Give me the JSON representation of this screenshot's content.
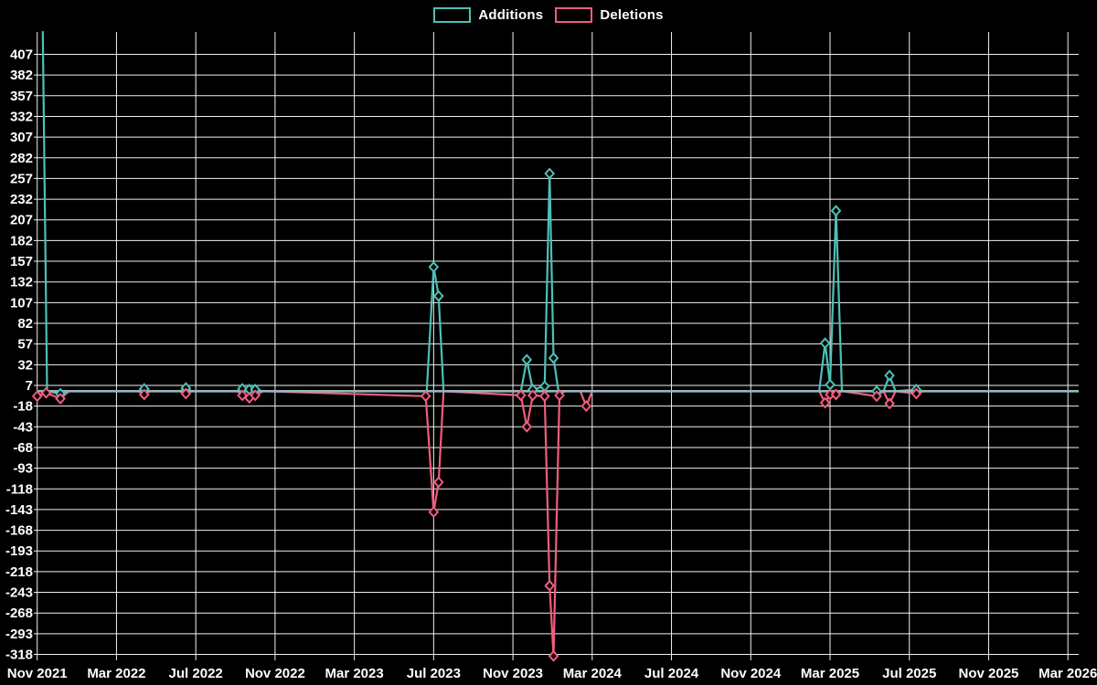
{
  "page": {
    "background_color": "#000000"
  },
  "legend": {
    "items": [
      {
        "label": "Additions",
        "color": "#4ec0b6"
      },
      {
        "label": "Deletions",
        "color": "#f25c7e"
      }
    ]
  },
  "chart_data": {
    "type": "line",
    "title": "",
    "legend_position": "top-center",
    "grid": true,
    "background_color": "#000000",
    "grid_color": "#f2f2f2",
    "zero_line_color": "#95b7bb",
    "text_color": "#ffffff",
    "x_axis": {
      "tick_labels": [
        "Nov 2021",
        "Mar 2022",
        "Jul 2022",
        "Nov 2022",
        "Mar 2023",
        "Jul 2023",
        "Nov 2023",
        "Mar 2024",
        "Jul 2024",
        "Nov 2024",
        "Mar 2025",
        "Jul 2025",
        "Nov 2025",
        "Mar 2026"
      ],
      "months_per_tick": 4,
      "x_unit": "months_since_first_tick"
    },
    "y_axis": {
      "min": -318,
      "max": 407,
      "step": 25,
      "tick_values": [
        407,
        382,
        357,
        332,
        307,
        282,
        257,
        232,
        207,
        182,
        157,
        132,
        107,
        82,
        57,
        32,
        7,
        -18,
        -43,
        -68,
        -93,
        -118,
        -143,
        -168,
        -193,
        -218,
        -243,
        -268,
        -293,
        -318
      ]
    },
    "series": [
      {
        "name": "Additions",
        "color": "#4ec0b6",
        "points": [
          [
            0.28,
            434,
            -1
          ],
          [
            0.5,
            0
          ],
          [
            1.17,
            -3,
            1
          ],
          [
            1.6,
            0
          ],
          [
            5.1,
            0
          ],
          [
            5.4,
            3
          ],
          [
            5.7,
            0
          ],
          [
            7.2,
            0
          ],
          [
            7.5,
            4
          ],
          [
            7.8,
            0
          ],
          [
            10.1,
            0
          ],
          [
            10.35,
            3,
            1
          ],
          [
            10.7,
            2
          ],
          [
            11.0,
            2
          ],
          [
            11.4,
            0
          ],
          [
            19.65,
            0
          ],
          [
            20.0,
            150
          ],
          [
            20.25,
            115
          ],
          [
            20.5,
            0
          ],
          [
            24.4,
            0
          ],
          [
            24.7,
            38
          ],
          [
            25.0,
            2
          ],
          [
            25.6,
            6
          ],
          [
            25.85,
            263
          ],
          [
            26.05,
            40
          ],
          [
            26.3,
            0
          ],
          [
            39.45,
            0
          ],
          [
            39.75,
            58
          ],
          [
            40.0,
            8
          ],
          [
            40.3,
            218
          ],
          [
            40.6,
            0
          ],
          [
            42.35,
            0,
            1
          ],
          [
            42.7,
            0
          ],
          [
            43.0,
            19
          ],
          [
            43.3,
            0
          ],
          [
            44.35,
            2
          ],
          [
            44.7,
            0
          ],
          [
            52.5,
            0
          ]
        ]
      },
      {
        "name": "Deletions",
        "color": "#f25c7e",
        "points": [
          [
            0.0,
            -6
          ],
          [
            0.45,
            -2
          ],
          [
            1.17,
            -9
          ],
          [
            1.6,
            0
          ],
          [
            5.1,
            0
          ],
          [
            5.4,
            -4
          ],
          [
            5.7,
            0
          ],
          [
            7.2,
            0
          ],
          [
            7.5,
            -3
          ],
          [
            7.8,
            0
          ],
          [
            10.1,
            0
          ],
          [
            10.35,
            -5
          ],
          [
            10.7,
            -8
          ],
          [
            11.0,
            -5
          ],
          [
            11.4,
            0
          ],
          [
            19.6,
            -6
          ],
          [
            20.0,
            -146
          ],
          [
            20.25,
            -110
          ],
          [
            20.5,
            0
          ],
          [
            24.4,
            -5
          ],
          [
            24.7,
            -43
          ],
          [
            25.0,
            -5
          ],
          [
            25.6,
            -6
          ],
          [
            25.85,
            -235
          ],
          [
            26.05,
            -320
          ],
          [
            26.35,
            -5
          ],
          [
            26.6,
            0
          ],
          [
            27.4,
            0
          ],
          [
            27.7,
            -18
          ],
          [
            28.0,
            0
          ],
          [
            39.45,
            0
          ],
          [
            39.75,
            -14
          ],
          [
            40.0,
            -4
          ],
          [
            40.3,
            -4
          ],
          [
            40.6,
            0
          ],
          [
            42.35,
            -6
          ],
          [
            42.7,
            0
          ],
          [
            43.0,
            -15
          ],
          [
            43.3,
            0
          ],
          [
            44.35,
            -3
          ],
          [
            44.7,
            0
          ],
          [
            52.5,
            0
          ]
        ]
      }
    ]
  }
}
